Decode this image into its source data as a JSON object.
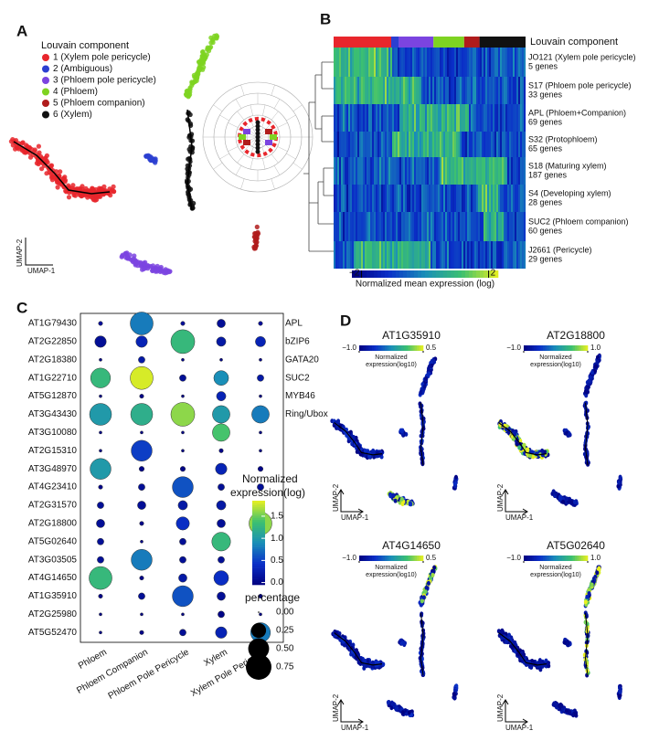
{
  "panel_labels": [
    "A",
    "B",
    "C",
    "D"
  ],
  "umap_a": {
    "legend_title": "Louvain component",
    "components": [
      {
        "label": "1 (Xylem pole pericycle)",
        "color": "#e8262c"
      },
      {
        "label": "2 (Ambiguous)",
        "color": "#2c3fd1"
      },
      {
        "label": "3 (Phloem pole pericycle)",
        "color": "#7b44e0"
      },
      {
        "label": "4 (Phloem)",
        "color": "#7ed321"
      },
      {
        "label": "5 (Phloem companion)",
        "color": "#b01c1c"
      },
      {
        "label": "6 (Xylem)",
        "color": "#111111"
      }
    ],
    "xlabel": "UMAP-1",
    "ylabel": "UMAP-2"
  },
  "heatmap_b": {
    "legend_title": "Louvain component",
    "modules": [
      {
        "name": "JO121 (Xylem pole pericycle)",
        "genes": "5 genes"
      },
      {
        "name": "S17 (Phloem pole pericycle)",
        "genes": "33 genes"
      },
      {
        "name": "APL (Phloem+Companion)",
        "genes": "69 genes"
      },
      {
        "name": "S32 (Protophloem)",
        "genes": "65 genes"
      },
      {
        "name": "S18 (Maturing xylem)",
        "genes": "187 genes"
      },
      {
        "name": "S4 (Developing xylem)",
        "genes": "28 genes"
      },
      {
        "name": "SUC2 (Phloem companion)",
        "genes": "60 genes"
      },
      {
        "name": "J2661 (Pericycle)",
        "genes": "29 genes"
      }
    ],
    "colorbar_label": "Normalized mean expression (log)",
    "colorbar_ticks": [
      {
        "value": -2,
        "label": "−2"
      },
      2
    ],
    "clim": [
      -2.3,
      2.3
    ]
  },
  "colorscale": [
    "#00007f",
    "#0a2fc8",
    "#1a8fb8",
    "#3cc070",
    "#e8f020"
  ],
  "chart_data": {
    "type": "dot",
    "categories": [
      "Phloem",
      "Phloem Companion",
      "Phloem Pole Pericycle",
      "Xylem",
      "Xylem Pole Pericycle"
    ],
    "series": [
      {
        "name": "AT1G79430",
        "annotation": "APL",
        "values": [
          0.1,
          0.8,
          0.1,
          0.1,
          0.1
        ],
        "sizes": [
          0.02,
          0.6,
          0.02,
          0.08,
          0.02
        ]
      },
      {
        "name": "AT2G22850",
        "annotation": "bZIP6",
        "values": [
          0.1,
          0.3,
          1.3,
          0.2,
          0.3
        ],
        "sizes": [
          0.15,
          0.15,
          0.65,
          0.1,
          0.12
        ]
      },
      {
        "name": "AT2G18380",
        "annotation": "GATA20",
        "values": [
          0,
          0.2,
          0,
          0,
          0
        ],
        "sizes": [
          0.01,
          0.05,
          0.01,
          0.01,
          0.01
        ]
      },
      {
        "name": "AT1G22710",
        "annotation": "SUC2",
        "values": [
          1.3,
          1.8,
          0.1,
          0.9,
          0.2
        ],
        "sizes": [
          0.45,
          0.6,
          0.05,
          0.25,
          0.05
        ]
      },
      {
        "name": "AT5G12870",
        "annotation": "MYB46",
        "values": [
          0,
          0,
          0,
          0.3,
          0
        ],
        "sizes": [
          0.01,
          0.02,
          0.01,
          0.1,
          0.01
        ]
      },
      {
        "name": "AT3G43430",
        "annotation": "Ring/Ubox",
        "values": [
          1.0,
          1.2,
          1.6,
          1.0,
          0.8
        ],
        "sizes": [
          0.55,
          0.55,
          0.65,
          0.35,
          0.35
        ]
      },
      {
        "name": "AT3G10080",
        "values": [
          0,
          0,
          0,
          1.4,
          0
        ],
        "sizes": [
          0.01,
          0.01,
          0.01,
          0.35,
          0.01
        ]
      },
      {
        "name": "AT2G15310",
        "values": [
          0,
          0.5,
          0,
          0,
          0
        ],
        "sizes": [
          0.01,
          0.5,
          0.01,
          0.02,
          0.01
        ]
      },
      {
        "name": "AT3G48970",
        "values": [
          1.0,
          0,
          0,
          0.3,
          0
        ],
        "sizes": [
          0.5,
          0.03,
          0.03,
          0.15,
          0.03
        ]
      },
      {
        "name": "AT4G23410",
        "values": [
          0,
          0.1,
          0.6,
          0.1,
          0.1
        ],
        "sizes": [
          0.02,
          0.05,
          0.5,
          0.05,
          0.05
        ]
      },
      {
        "name": "AT2G31570",
        "values": [
          0.1,
          0.1,
          0.2,
          0.2,
          0.1
        ],
        "sizes": [
          0.05,
          0.08,
          0.1,
          0.1,
          0.05
        ]
      },
      {
        "name": "AT2G18800",
        "values": [
          0.1,
          0,
          0.4,
          0.1,
          1.6
        ],
        "sizes": [
          0.08,
          0.02,
          0.2,
          0.08,
          0.6
        ]
      },
      {
        "name": "AT5G02640",
        "values": [
          0.1,
          0,
          0.1,
          1.3,
          0.1
        ],
        "sizes": [
          0.05,
          0.01,
          0.05,
          0.4,
          0.05
        ]
      },
      {
        "name": "AT3G03505",
        "values": [
          0.1,
          0.8,
          0.1,
          0.1,
          0.1
        ],
        "sizes": [
          0.05,
          0.5,
          0.05,
          0.05,
          0.02
        ]
      },
      {
        "name": "AT4G14650",
        "values": [
          1.3,
          0,
          0.2,
          0.4,
          0
        ],
        "sizes": [
          0.6,
          0.02,
          0.08,
          0.25,
          0.02
        ]
      },
      {
        "name": "AT1G35910",
        "values": [
          0,
          0.1,
          0.6,
          0.1,
          0
        ],
        "sizes": [
          0.02,
          0.05,
          0.5,
          0.08,
          0.02
        ]
      },
      {
        "name": "AT2G25980",
        "values": [
          0,
          0,
          0,
          0,
          0
        ],
        "sizes": [
          0.01,
          0.01,
          0.01,
          0.05,
          0.01
        ]
      },
      {
        "name": "AT5G52470",
        "values": [
          0,
          0,
          0.1,
          0.3,
          0.8
        ],
        "sizes": [
          0.01,
          0.02,
          0.05,
          0.15,
          0.45
        ]
      }
    ],
    "colorbar_title": [
      "Normalized",
      "expression(log)"
    ],
    "clim": [
      -0.05,
      1.85
    ],
    "colorbar_ticks": [
      {
        "value": 0,
        "label": "0.0"
      },
      {
        "value": 0.5,
        "label": "0.5"
      },
      {
        "value": 1,
        "label": "1.0"
      },
      {
        "value": 1.5,
        "label": "1.5"
      }
    ],
    "size_title": "percentage",
    "size_ticks": [
      {
        "value": 0,
        "label": "0.00"
      },
      0.25,
      {
        "value": 0.5,
        "label": "0.50"
      },
      0.75
    ]
  },
  "umap_d": {
    "panels": [
      {
        "gene": "AT1G35910",
        "colorbar_ticks": [
          {
            "value": -1,
            "label": "−1.0"
          },
          0.5
        ],
        "clim": [
          -1,
          0.5
        ]
      },
      {
        "gene": "AT2G18800",
        "colorbar_ticks": [
          {
            "value": -1,
            "label": "−1.0"
          },
          {
            "value": 1,
            "label": "1.0"
          }
        ],
        "clim": [
          -1,
          1
        ]
      },
      {
        "gene": "AT4G14650",
        "colorbar_ticks": [
          {
            "value": -1,
            "label": "−1.0"
          },
          0.5
        ],
        "clim": [
          -1,
          0.5
        ]
      },
      {
        "gene": "AT5G02640",
        "colorbar_ticks": [
          {
            "value": -1,
            "label": "−1.0"
          },
          {
            "value": 1,
            "label": "1.0"
          }
        ],
        "clim": [
          -1,
          1
        ]
      }
    ],
    "colorbar_label": [
      "Normalized",
      "expression(log10)"
    ],
    "xlabel": "UMAP-1",
    "ylabel": "UMAP-2"
  }
}
